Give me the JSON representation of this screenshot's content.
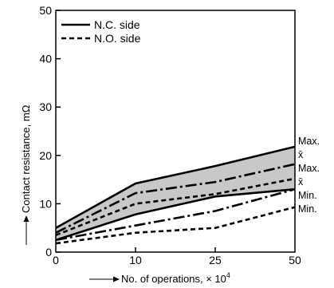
{
  "chart_data": {
    "type": "line",
    "xlabel": "No. of operations, × 10",
    "xlabel_superscript": "4",
    "ylabel": "Contact resistance, mΩ",
    "categories": [
      "0",
      "10",
      "25",
      "50"
    ],
    "x": [
      0,
      10,
      25,
      50
    ],
    "ylim": [
      0,
      50
    ],
    "yticks": [
      0,
      10,
      20,
      30,
      40,
      50
    ],
    "grid": false,
    "legend": {
      "placement": "top-left",
      "entries": [
        {
          "label": "N.C. side",
          "style": "solid"
        },
        {
          "label": "N.O. side",
          "style": "dashed"
        }
      ]
    },
    "bands": [
      {
        "series": "N.C. side",
        "fill": "#c8c8c8",
        "upper": "N.C. side Max.",
        "lower": "N.C. side Min."
      }
    ],
    "series": [
      {
        "name": "N.C. side Max.",
        "group": "N.C. side",
        "stat": "Max.",
        "style": "solid",
        "values": [
          5,
          14.2,
          17.8,
          21.8
        ]
      },
      {
        "name": "N.C. side x̄",
        "group": "N.C. side",
        "stat": "x̄",
        "style": "dashdot",
        "values": [
          4,
          12.2,
          14.5,
          18.2
        ]
      },
      {
        "name": "N.C. side Min.",
        "group": "N.C. side",
        "stat": "Min.",
        "style": "solid",
        "values": [
          2.5,
          7.8,
          11.5,
          13
        ]
      },
      {
        "name": "N.O. side Max.",
        "group": "N.O. side",
        "stat": "Max.",
        "style": "dashed",
        "values": [
          3.5,
          10,
          12,
          15.2
        ]
      },
      {
        "name": "N.O. side x̄",
        "group": "N.O. side",
        "stat": "x̄",
        "style": "dashdot",
        "values": [
          2.5,
          5.5,
          8.5,
          13
        ]
      },
      {
        "name": "N.O. side Min.",
        "group": "N.O. side",
        "stat": "Min.",
        "style": "dashed",
        "values": [
          1.8,
          4,
          5,
          9.3
        ]
      }
    ],
    "end_labels": [
      "Max.",
      "x̄",
      "Max.",
      "x̄",
      "Min.",
      "Min."
    ]
  }
}
